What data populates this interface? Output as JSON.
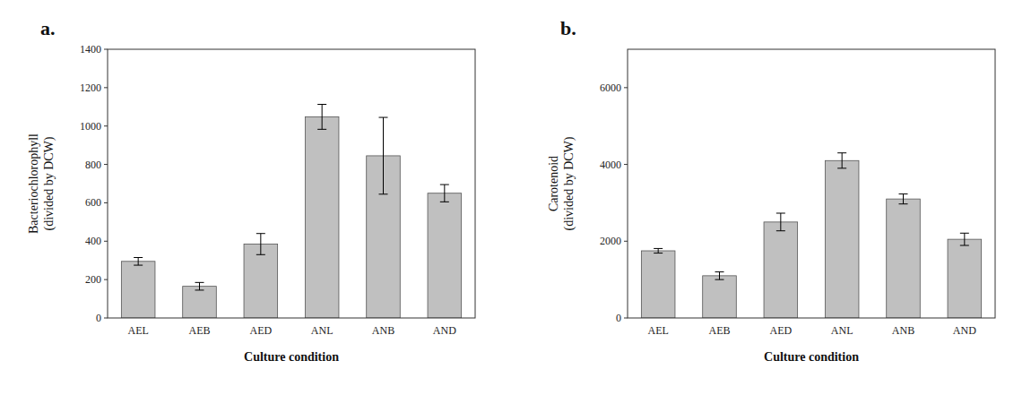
{
  "chart_data": [
    {
      "type": "bar",
      "title": "a.",
      "categories": [
        "AEL",
        "AEB",
        "AED",
        "ANL",
        "ANB",
        "AND"
      ],
      "values": [
        295,
        165,
        385,
        1048,
        845,
        650
      ],
      "errors": [
        20,
        20,
        55,
        65,
        200,
        45
      ],
      "xlabel": "Culture condition",
      "ylabel": "Bacteriochlorophyll\n(divided by DCW)",
      "ylim": [
        0,
        1400
      ],
      "yticks": [
        0,
        200,
        400,
        600,
        800,
        1000,
        1200,
        1400
      ],
      "color": "#c0c0c0",
      "grid": false
    },
    {
      "type": "bar",
      "title": "b.",
      "categories": [
        "AEL",
        "AEB",
        "AED",
        "ANL",
        "ANB",
        "AND"
      ],
      "values": [
        1750,
        1100,
        2500,
        4100,
        3100,
        2050
      ],
      "errors": [
        60,
        100,
        230,
        200,
        130,
        160
      ],
      "xlabel": "Culture condition",
      "ylabel": "Carotenoid\n(divided by DCW)",
      "ylim": [
        0,
        7000
      ],
      "yticks": [
        0,
        2000,
        4000,
        6000
      ],
      "color": "#c0c0c0",
      "grid": false
    }
  ]
}
